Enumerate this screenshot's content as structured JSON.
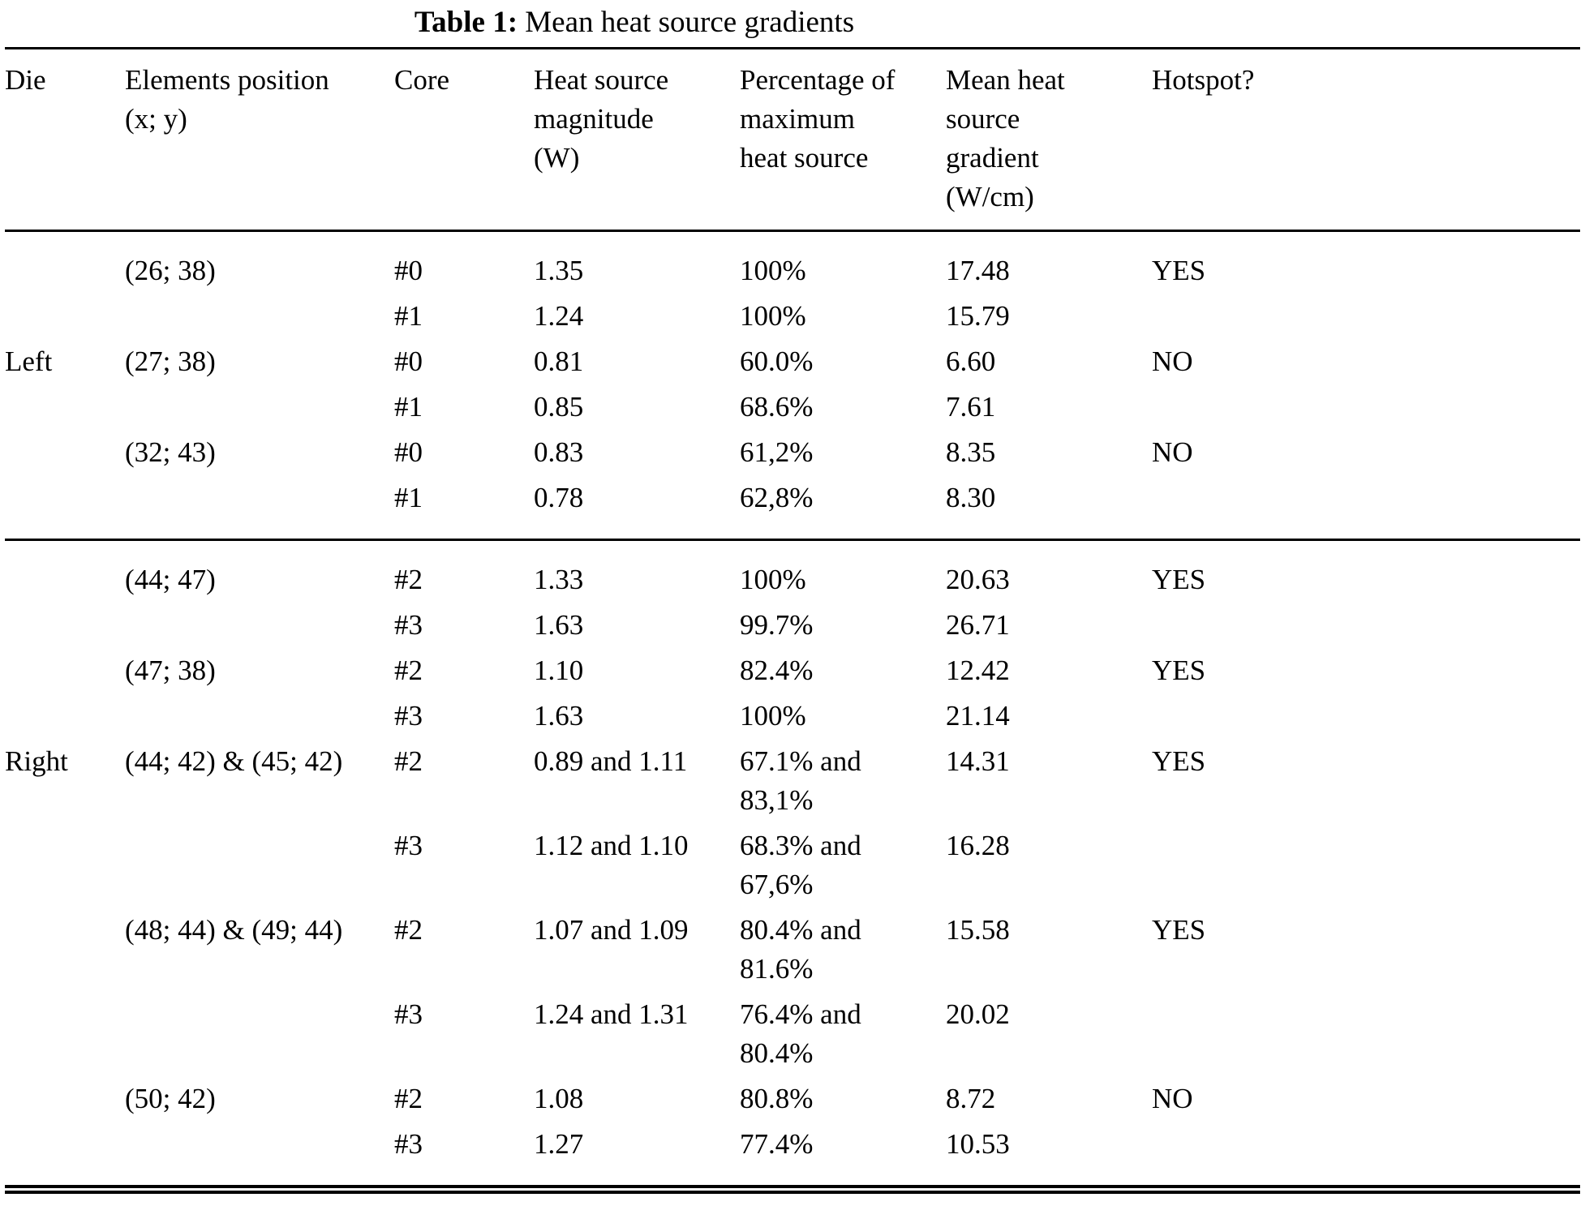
{
  "title": {
    "prefix": "Table 1:",
    "text": "Mean heat source gradients"
  },
  "table": {
    "headers": [
      "Die",
      "Elements position\n(x; y)",
      "Core",
      "Heat source\nmagnitude\n(W)",
      "Percentage of\nmaximum\nheat source",
      "Mean heat\nsource\ngradient\n(W/cm)",
      "Hotspot?"
    ],
    "column_keys": [
      "die",
      "position",
      "core",
      "magnitude",
      "percentage",
      "gradient",
      "hotspot"
    ],
    "sections": [
      {
        "name": "left",
        "rows": [
          [
            "",
            "(26; 38)",
            "#0",
            "1.35",
            "100%",
            "17.48",
            "YES"
          ],
          [
            "",
            "",
            "#1",
            "1.24",
            "100%",
            "15.79",
            ""
          ],
          [
            "Left",
            "(27; 38)",
            "#0",
            "0.81",
            "60.0%",
            "6.60",
            "NO"
          ],
          [
            "",
            "",
            "#1",
            "0.85",
            "68.6%",
            "7.61",
            ""
          ],
          [
            "",
            "(32; 43)",
            "#0",
            "0.83",
            "61,2%",
            "8.35",
            "NO"
          ],
          [
            "",
            "",
            "#1",
            "0.78",
            "62,8%",
            "8.30",
            ""
          ]
        ]
      },
      {
        "name": "right",
        "rows": [
          [
            "",
            "(44; 47)",
            "#2",
            "1.33",
            "100%",
            "20.63",
            "YES"
          ],
          [
            "",
            "",
            "#3",
            "1.63",
            "99.7%",
            "26.71",
            ""
          ],
          [
            "",
            "(47; 38)",
            "#2",
            "1.10",
            "82.4%",
            "12.42",
            "YES"
          ],
          [
            "",
            "",
            "#3",
            "1.63",
            "100%",
            "21.14",
            ""
          ],
          [
            "Right",
            "(44; 42) & (45; 42)",
            "#2",
            "0.89 and 1.11",
            "67.1% and\n83,1%",
            "14.31",
            "YES"
          ],
          [
            "",
            "",
            "#3",
            "1.12 and 1.10",
            "68.3% and\n67,6%",
            "16.28",
            ""
          ],
          [
            "",
            "(48; 44) & (49; 44)",
            "#2",
            "1.07 and 1.09",
            "80.4% and\n81.6%",
            "15.58",
            "YES"
          ],
          [
            "",
            "",
            "#3",
            "1.24 and 1.31",
            "76.4% and\n80.4%",
            "20.02",
            ""
          ],
          [
            "",
            "(50; 42)",
            "#2",
            "1.08",
            "80.8%",
            "8.72",
            "NO"
          ],
          [
            "",
            "",
            "#3",
            "1.27",
            "77.4%",
            "10.53",
            ""
          ]
        ]
      }
    ]
  }
}
